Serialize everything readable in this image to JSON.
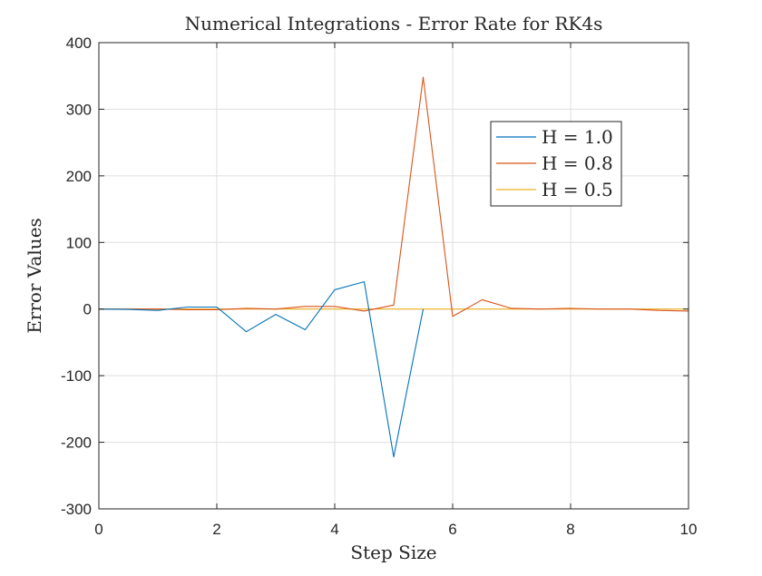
{
  "chart_data": {
    "type": "line",
    "title": "Numerical Integrations - Error Rate for RK4s",
    "xlabel": "Step Size",
    "ylabel": "Error Values",
    "xlim": [
      0,
      10
    ],
    "ylim": [
      -300,
      400
    ],
    "xticks": [
      0,
      2,
      4,
      6,
      8,
      10
    ],
    "yticks": [
      -300,
      -200,
      -100,
      0,
      100,
      200,
      300,
      400
    ],
    "xtick_labels": [
      "0",
      "2",
      "4",
      "6",
      "8",
      "10"
    ],
    "ytick_labels": [
      "-300",
      "-200",
      "-100",
      "0",
      "100",
      "200",
      "300",
      "400"
    ],
    "grid": true,
    "legend_position": "top-right",
    "series": [
      {
        "name": "H = 1.0",
        "color": "#0072BD",
        "x": [
          0,
          0.5,
          1,
          1.5,
          2,
          2.5,
          3,
          3.5,
          4,
          4.5,
          5,
          5.5
        ],
        "y": [
          0,
          -0.5,
          -2,
          3,
          3,
          -34,
          -8,
          -31,
          29,
          41,
          -222,
          0
        ]
      },
      {
        "name": "H = 0.8",
        "color": "#D95319",
        "x": [
          0,
          0.5,
          1,
          1.5,
          2,
          2.5,
          3,
          3.5,
          4,
          4.5,
          5,
          5.5,
          6,
          6.5,
          7,
          7.5,
          8,
          8.5,
          9,
          9.5,
          10
        ],
        "y": [
          0,
          0,
          0,
          -1,
          -1,
          1,
          0,
          4,
          4,
          -3,
          6,
          348,
          -11,
          14,
          1,
          0,
          1,
          0,
          0,
          -2,
          -3
        ]
      },
      {
        "name": "H = 0.5",
        "color": "#EDB120",
        "x": [
          0,
          0.5,
          1,
          1.5,
          2,
          2.5,
          3,
          3.5,
          4,
          4.5,
          5,
          5.5,
          6,
          6.5,
          7,
          7.5,
          8,
          8.5,
          9,
          9.5,
          10
        ],
        "y": [
          0,
          0,
          0,
          0,
          0,
          0,
          0,
          0,
          0,
          0,
          0,
          0,
          0,
          0,
          0,
          0,
          0,
          0,
          0,
          0,
          0
        ]
      }
    ]
  }
}
